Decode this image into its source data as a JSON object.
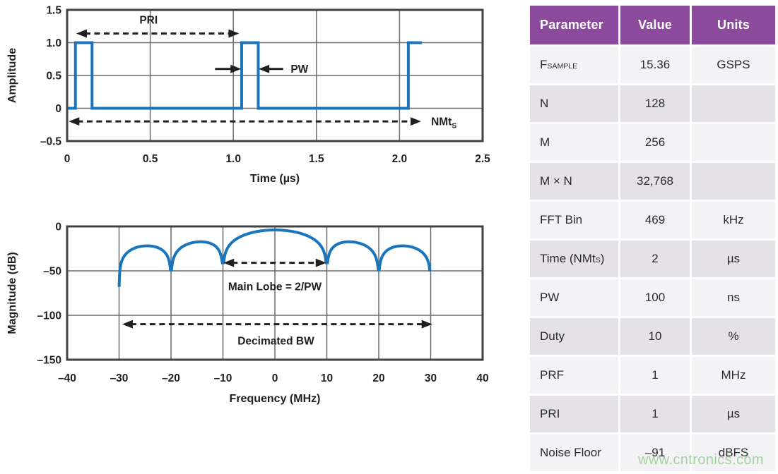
{
  "watermark": {
    "text": "www.cntronics.com"
  },
  "colors": {
    "line_blue": "#1b75bc",
    "frame": "#414042",
    "grid": "#6a6b6d",
    "annotation": "#231f20",
    "header_purple": "#8b4a9b",
    "row_light": "#f3f2f4",
    "row_dark": "#e4e2e7",
    "header_text": "#ffffff",
    "body_text": "#2b2a2e"
  },
  "table": {
    "headers": [
      "Parameter",
      "Value",
      "Units"
    ],
    "rows": [
      {
        "param": "F_{SAMPLE}",
        "value": "15.36",
        "units": "GSPS"
      },
      {
        "param": "N",
        "value": "128",
        "units": ""
      },
      {
        "param": "M",
        "value": "256",
        "units": ""
      },
      {
        "param": "M × N",
        "value": "32,768",
        "units": ""
      },
      {
        "param": "FFT Bin",
        "value": "469",
        "units": "kHz"
      },
      {
        "param": "Time (NMt_{S})",
        "value": "2",
        "units": "µs"
      },
      {
        "param": "PW",
        "value": "100",
        "units": "ns"
      },
      {
        "param": "Duty",
        "value": "10",
        "units": "%"
      },
      {
        "param": "PRF",
        "value": "1",
        "units": "MHz"
      },
      {
        "param": "PRI",
        "value": "1",
        "units": "µs"
      },
      {
        "param": "Noise Floor",
        "value": "–91",
        "units": "dBFS"
      }
    ]
  },
  "chart_data": [
    {
      "id": "time",
      "type": "line",
      "title": "",
      "xlabel": "Time (µs)",
      "ylabel": "Amplitude",
      "xlim": [
        0,
        2.5
      ],
      "ylim": [
        -0.5,
        1.5
      ],
      "xticks": [
        {
          "v": 0,
          "label": "0"
        },
        {
          "v": 0.5,
          "label": "0.5"
        },
        {
          "v": 1.0,
          "label": "1.0"
        },
        {
          "v": 1.5,
          "label": "1.5"
        },
        {
          "v": 2.0,
          "label": "2.0"
        },
        {
          "v": 2.5,
          "label": "2.5"
        }
      ],
      "yticks": [
        {
          "v": 1.5,
          "label": "1.5"
        },
        {
          "v": 1.0,
          "label": "1.0"
        },
        {
          "v": 0.5,
          "label": "0.5"
        },
        {
          "v": 0,
          "label": "0"
        },
        {
          "v": -0.5,
          "label": "–0.5"
        }
      ],
      "series": [
        {
          "name": "pulse-train",
          "points": [
            [
              0,
              0
            ],
            [
              0.05,
              0
            ],
            [
              0.05,
              1
            ],
            [
              0.15,
              1
            ],
            [
              0.15,
              0
            ],
            [
              1.05,
              0
            ],
            [
              1.05,
              1
            ],
            [
              1.15,
              1
            ],
            [
              1.15,
              0
            ],
            [
              2.053,
              0
            ],
            [
              2.053,
              1
            ],
            [
              2.135,
              1
            ]
          ]
        }
      ],
      "annotations": [
        {
          "kind": "darrow",
          "x1": 0.055,
          "x2": 1.035,
          "y": 1.14
        },
        {
          "kind": "label",
          "x": 0.49,
          "y": 1.29,
          "text": "PRI",
          "anchor": "middle"
        },
        {
          "kind": "arrow",
          "x1": 0.89,
          "x2": 1.047,
          "y": 0.6
        },
        {
          "kind": "arrow",
          "x1": 1.3,
          "x2": 1.153,
          "y": 0.6
        },
        {
          "kind": "label",
          "x": 1.345,
          "y": 0.545,
          "text": "PW",
          "anchor": "start"
        },
        {
          "kind": "darrow",
          "x1": 0.01,
          "x2": 2.13,
          "y": -0.2
        },
        {
          "kind": "label",
          "x": 2.19,
          "y": -0.26,
          "text": "NMt_{S}",
          "anchor": "start"
        }
      ]
    },
    {
      "id": "freq",
      "type": "line",
      "title": "",
      "xlabel": "Frequency (MHz)",
      "ylabel": "Magnitude (dB)",
      "xlim": [
        -40,
        40
      ],
      "ylim": [
        -150,
        0
      ],
      "xticks": [
        {
          "v": -40,
          "label": "–40"
        },
        {
          "v": -30,
          "label": "–30"
        },
        {
          "v": -20,
          "label": "–20"
        },
        {
          "v": -10,
          "label": "–10"
        },
        {
          "v": 0,
          "label": "0"
        },
        {
          "v": 10,
          "label": "10"
        },
        {
          "v": 20,
          "label": "20"
        },
        {
          "v": 30,
          "label": "30"
        },
        {
          "v": 40,
          "label": "40"
        }
      ],
      "yticks": [
        {
          "v": 0,
          "label": "0"
        },
        {
          "v": -50,
          "label": "–50"
        },
        {
          "v": -100,
          "label": "–100"
        },
        {
          "v": -150,
          "label": "–150"
        }
      ],
      "series": [
        {
          "name": "sinc-spectrum",
          "generator": {
            "kind": "sinc_db",
            "null_spacing_mhz": 10,
            "peak_db": -4,
            "range": [
              -29.99,
              29.91
            ],
            "null_floor_db": [
              -41,
              -49
            ],
            "end_db": [
              -68,
              -55
            ]
          },
          "key_points": {
            "main_lobe_peak": [
              0,
              -4
            ],
            "nulls_mhz": [
              -30,
              -20,
              -10,
              10,
              20,
              30
            ],
            "sidelobe_peaks": [
              [
                -25,
                -22
              ],
              [
                -15,
                -17
              ],
              [
                15,
                -17
              ],
              [
                25,
                -22
              ]
            ],
            "left_end": [
              -30,
              -68
            ],
            "right_end": [
              30,
              -55
            ]
          }
        }
      ],
      "annotations": [
        {
          "kind": "darrow",
          "x1": -9.9,
          "x2": 9.9,
          "y": -41
        },
        {
          "kind": "label",
          "x": 0,
          "y": -72,
          "text": "Main Lobe = 2/PW",
          "anchor": "middle"
        },
        {
          "kind": "darrow",
          "x1": -29.4,
          "x2": 30.3,
          "y": -110
        },
        {
          "kind": "label",
          "x": 0.2,
          "y": -133,
          "text": "Decimated BW",
          "anchor": "middle"
        }
      ]
    }
  ]
}
